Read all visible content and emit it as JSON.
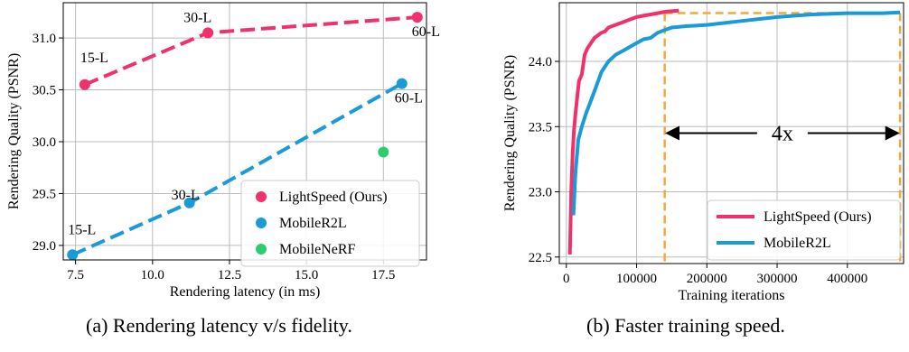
{
  "captions": {
    "a": "(a) Rendering latency v/s fidelity.",
    "b": "(b) Faster training speed."
  },
  "colors": {
    "lightspeed": "#f0316b",
    "mobiler2l": "#1b9ad8",
    "mobilenerf": "#2ecc71",
    "highlight": "#f5a83a",
    "grid": "#bbbbbb"
  },
  "chart_data": [
    {
      "type": "scatter",
      "xlabel": "Rendering latency (in ms)",
      "ylabel": "Rendering Quality (PSNR)",
      "xlim": [
        7.1,
        18.9
      ],
      "ylim": [
        28.86,
        31.34
      ],
      "xticks": [
        "7.5",
        "10.0",
        "12.5",
        "15.0",
        "17.5"
      ],
      "xtick_values": [
        7.5,
        10.0,
        12.5,
        15.0,
        17.5
      ],
      "yticks": [
        "29.0",
        "29.5",
        "30.0",
        "30.5",
        "31.0"
      ],
      "ytick_values": [
        29.0,
        29.5,
        30.0,
        30.5,
        31.0
      ],
      "grid": true,
      "legend_position": "bottom-right",
      "series": [
        {
          "name": "LightSpeed (Ours)",
          "color": "#f0316b",
          "line": "dashed",
          "x": [
            7.8,
            11.8,
            18.6
          ],
          "y": [
            30.55,
            31.05,
            31.2
          ],
          "labels": [
            "15-L",
            "30-L",
            "60-L"
          ]
        },
        {
          "name": "MobileR2L",
          "color": "#1b9ad8",
          "line": "dashed",
          "x": [
            7.4,
            11.2,
            18.1
          ],
          "y": [
            28.91,
            29.41,
            30.56
          ],
          "labels": [
            "15-L",
            "30-L",
            "60-L"
          ]
        },
        {
          "name": "MobileNeRF",
          "color": "#2ecc71",
          "line": "none",
          "x": [
            17.5
          ],
          "y": [
            29.9
          ],
          "labels": []
        }
      ]
    },
    {
      "type": "line",
      "xlabel": "Training iterations",
      "ylabel": "Rendering Quality (PSNR)",
      "xlim": [
        -10000,
        480000
      ],
      "ylim": [
        22.45,
        24.45
      ],
      "xticks": [
        "0",
        "100000",
        "200000",
        "300000",
        "400000"
      ],
      "xtick_values": [
        0,
        100000,
        200000,
        300000,
        400000
      ],
      "yticks": [
        "22.5",
        "23.0",
        "23.5",
        "24.0"
      ],
      "ytick_values": [
        22.5,
        23.0,
        23.5,
        24.0
      ],
      "grid": true,
      "legend_position": "bottom-right",
      "annotation": {
        "text": "4x",
        "x_start": 140000,
        "x_end": 475000,
        "y": 23.45,
        "plateau_y": 24.37
      },
      "series": [
        {
          "name": "LightSpeed (Ours)",
          "color": "#f0316b",
          "x": [
            5000,
            7000,
            9000,
            11000,
            13000,
            15000,
            18000,
            22000,
            26000,
            30000,
            35000,
            40000,
            45000,
            50000,
            55000,
            60000,
            70000,
            80000,
            90000,
            100000,
            110000,
            120000,
            130000,
            140000,
            150000,
            160000
          ],
          "y": [
            22.52,
            23.0,
            23.3,
            23.48,
            23.6,
            23.7,
            23.85,
            23.9,
            24.05,
            24.1,
            24.14,
            24.18,
            24.2,
            24.22,
            24.23,
            24.26,
            24.28,
            24.3,
            24.32,
            24.34,
            24.35,
            24.36,
            24.37,
            24.38,
            24.385,
            24.39
          ]
        },
        {
          "name": "MobileR2L",
          "color": "#1b9ad8",
          "x": [
            10000,
            13000,
            17000,
            22000,
            28000,
            35000,
            42000,
            50000,
            60000,
            70000,
            80000,
            90000,
            100000,
            110000,
            120000,
            130000,
            140000,
            150000,
            170000,
            200000,
            250000,
            300000,
            350000,
            400000,
            450000,
            475000
          ],
          "y": [
            22.82,
            23.15,
            23.4,
            23.5,
            23.6,
            23.7,
            23.8,
            23.92,
            24.0,
            24.05,
            24.08,
            24.11,
            24.14,
            24.17,
            24.18,
            24.22,
            24.24,
            24.26,
            24.27,
            24.28,
            24.31,
            24.34,
            24.36,
            24.37,
            24.37,
            24.375
          ]
        }
      ]
    }
  ]
}
